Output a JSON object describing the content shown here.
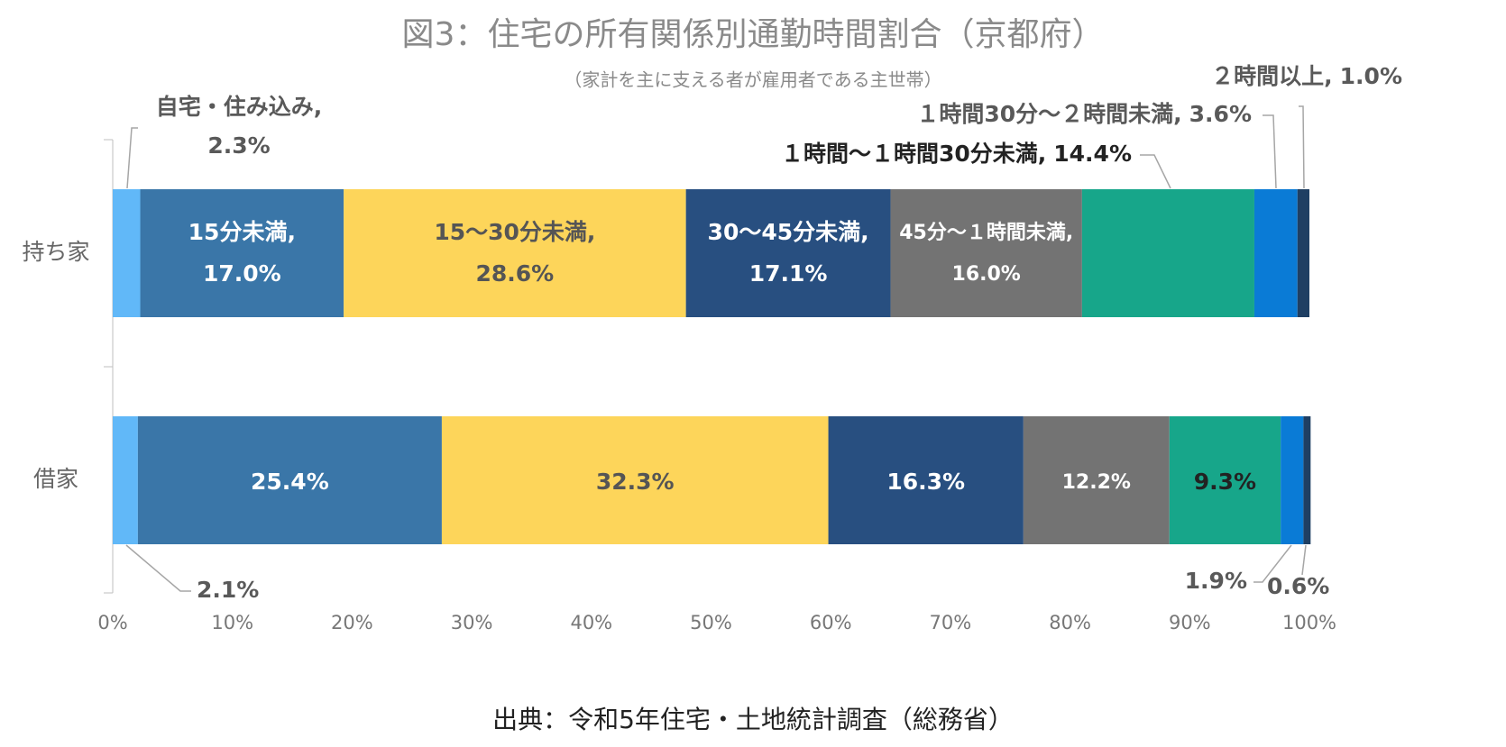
{
  "chart_data": {
    "type": "stacked-bar-horizontal",
    "title": "図3：住宅の所有関係別通勤時間割合（京都府）",
    "subtitle": "（家計を主に支える者が雇用者である主世帯）",
    "source": "出典：令和5年住宅・土地統計調査（総務省）",
    "categories": [
      "持ち家",
      "借家"
    ],
    "series": [
      {
        "name": "自宅・住み込み,",
        "color": "#61b8f8",
        "values": [
          2.3,
          2.1
        ],
        "value_labels": [
          "2.3%",
          "2.1%"
        ]
      },
      {
        "name": "15分未満,",
        "color": "#3a76a8",
        "values": [
          17.0,
          25.4
        ],
        "value_labels": [
          "17.0%",
          "25.4%"
        ]
      },
      {
        "name": "15～30分未満,",
        "color": "#fdd55a",
        "values": [
          28.6,
          32.3
        ],
        "value_labels": [
          "28.6%",
          "32.3%"
        ]
      },
      {
        "name": "30～45分未満,",
        "color": "#284f80",
        "values": [
          17.1,
          16.3
        ],
        "value_labels": [
          "17.1%",
          "16.3%"
        ]
      },
      {
        "name": "45分～１時間未満,",
        "color": "#737373",
        "values": [
          16.0,
          12.2
        ],
        "value_labels": [
          "16.0%",
          "12.2%"
        ]
      },
      {
        "name": "１時間～１時間30分未満,",
        "color": "#17a68a",
        "values": [
          14.4,
          9.3
        ],
        "value_labels": [
          "14.4%",
          "9.3%"
        ]
      },
      {
        "name": "１時間30分～２時間未満,",
        "color": "#0a7bd6",
        "values": [
          3.6,
          1.9
        ],
        "value_labels": [
          "3.6%",
          "1.9%"
        ]
      },
      {
        "name": "２時間以上,",
        "color": "#1f3f63",
        "values": [
          1.0,
          0.6
        ],
        "value_labels": [
          "1.0%",
          "0.6%"
        ]
      }
    ],
    "xlim": [
      0,
      100
    ],
    "xticks": [
      {
        "value": 0,
        "label": "0%"
      },
      {
        "value": 10,
        "label": "10%"
      },
      {
        "value": 20,
        "label": "20%"
      },
      {
        "value": 30,
        "label": "30%"
      },
      {
        "value": 40,
        "label": "40%"
      },
      {
        "value": 50,
        "label": "50%"
      },
      {
        "value": 60,
        "label": "60%"
      },
      {
        "value": 70,
        "label": "70%"
      },
      {
        "value": 80,
        "label": "80%"
      },
      {
        "value": 90,
        "label": "90%"
      },
      {
        "value": 100,
        "label": "100%"
      }
    ]
  }
}
